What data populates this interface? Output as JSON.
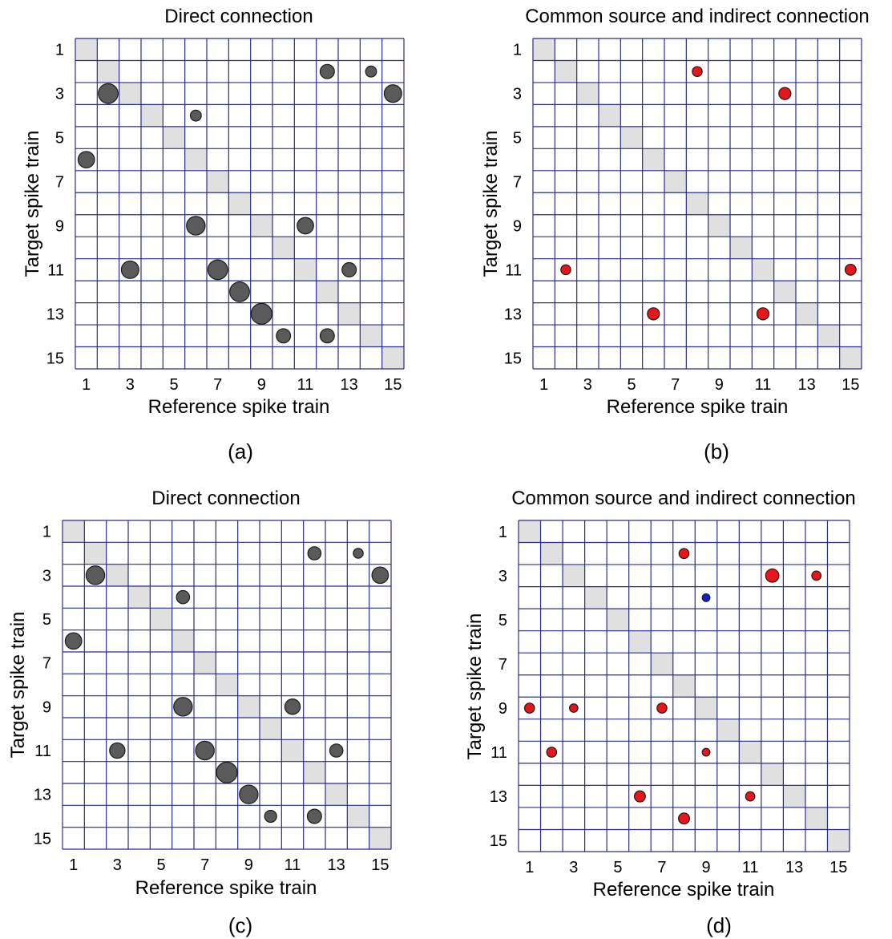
{
  "colors": {
    "grid": "#2b2b8f",
    "diagonal": "#e0e0e0",
    "dark_marker": "#5a5a5a",
    "red_marker": "#e8161a",
    "blue_marker": "#1020c8"
  },
  "chart_data": [
    {
      "id": "a",
      "type": "scatter",
      "subtype": "matrix-bubble",
      "title": "Direct connection",
      "xlabel": "Reference spike train",
      "ylabel": "Target spike train",
      "panel_label": "(a)",
      "xlim": [
        1,
        15
      ],
      "ylim": [
        1,
        15
      ],
      "x_ticks": [
        1,
        3,
        5,
        7,
        9,
        11,
        13,
        15
      ],
      "y_ticks": [
        1,
        3,
        5,
        7,
        9,
        11,
        13,
        15
      ],
      "y_inverted": true,
      "diagonal_shaded": true,
      "series": [
        {
          "color": "#5a5a5a",
          "points": [
            {
              "x": 12,
              "y": 2,
              "size": 0.65
            },
            {
              "x": 14,
              "y": 2,
              "size": 0.5
            },
            {
              "x": 2,
              "y": 3,
              "size": 0.9
            },
            {
              "x": 15,
              "y": 3,
              "size": 0.8
            },
            {
              "x": 6,
              "y": 4,
              "size": 0.5
            },
            {
              "x": 1,
              "y": 6,
              "size": 0.75
            },
            {
              "x": 6,
              "y": 9,
              "size": 0.85
            },
            {
              "x": 11,
              "y": 9,
              "size": 0.75
            },
            {
              "x": 3,
              "y": 11,
              "size": 0.8
            },
            {
              "x": 7,
              "y": 11,
              "size": 0.9
            },
            {
              "x": 13,
              "y": 11,
              "size": 0.65
            },
            {
              "x": 8,
              "y": 12,
              "size": 0.9
            },
            {
              "x": 9,
              "y": 13,
              "size": 0.95
            },
            {
              "x": 10,
              "y": 14,
              "size": 0.65
            },
            {
              "x": 12,
              "y": 14,
              "size": 0.65
            }
          ]
        }
      ]
    },
    {
      "id": "b",
      "type": "scatter",
      "subtype": "matrix-bubble",
      "title": "Common source and indirect connection",
      "xlabel": "Reference spike train",
      "ylabel": "Target spike train",
      "panel_label": "(b)",
      "xlim": [
        1,
        15
      ],
      "ylim": [
        1,
        15
      ],
      "x_ticks": [
        1,
        3,
        5,
        7,
        9,
        11,
        13,
        15
      ],
      "y_ticks": [
        1,
        3,
        5,
        7,
        9,
        11,
        13,
        15
      ],
      "y_inverted": true,
      "diagonal_shaded": true,
      "series": [
        {
          "color": "#e8161a",
          "points": [
            {
              "x": 8,
              "y": 2,
              "size": 0.45
            },
            {
              "x": 12,
              "y": 3,
              "size": 0.55
            },
            {
              "x": 2,
              "y": 11,
              "size": 0.45
            },
            {
              "x": 15,
              "y": 11,
              "size": 0.5
            },
            {
              "x": 6,
              "y": 13,
              "size": 0.55
            },
            {
              "x": 11,
              "y": 13,
              "size": 0.55
            }
          ]
        }
      ]
    },
    {
      "id": "c",
      "type": "scatter",
      "subtype": "matrix-bubble",
      "title": "Direct connection",
      "xlabel": "Reference spike train",
      "ylabel": "Target spike train",
      "panel_label": "(c)",
      "xlim": [
        1,
        15
      ],
      "ylim": [
        1,
        15
      ],
      "x_ticks": [
        1,
        3,
        5,
        7,
        9,
        11,
        13,
        15
      ],
      "y_ticks": [
        1,
        3,
        5,
        7,
        9,
        11,
        13,
        15
      ],
      "y_inverted": true,
      "diagonal_shaded": true,
      "series": [
        {
          "color": "#5a5a5a",
          "points": [
            {
              "x": 12,
              "y": 2,
              "size": 0.6
            },
            {
              "x": 14,
              "y": 2,
              "size": 0.45
            },
            {
              "x": 2,
              "y": 3,
              "size": 0.85
            },
            {
              "x": 15,
              "y": 3,
              "size": 0.75
            },
            {
              "x": 6,
              "y": 4,
              "size": 0.6
            },
            {
              "x": 1,
              "y": 6,
              "size": 0.75
            },
            {
              "x": 6,
              "y": 9,
              "size": 0.85
            },
            {
              "x": 11,
              "y": 9,
              "size": 0.7
            },
            {
              "x": 3,
              "y": 11,
              "size": 0.7
            },
            {
              "x": 7,
              "y": 11,
              "size": 0.85
            },
            {
              "x": 13,
              "y": 11,
              "size": 0.6
            },
            {
              "x": 8,
              "y": 12,
              "size": 0.95
            },
            {
              "x": 9,
              "y": 13,
              "size": 0.85
            },
            {
              "x": 10,
              "y": 14,
              "size": 0.55
            },
            {
              "x": 12,
              "y": 14,
              "size": 0.65
            }
          ]
        }
      ]
    },
    {
      "id": "d",
      "type": "scatter",
      "subtype": "matrix-bubble",
      "title": "Common source and indirect connection",
      "xlabel": "Reference spike train",
      "ylabel": "Target spike train",
      "panel_label": "(d)",
      "xlim": [
        1,
        15
      ],
      "ylim": [
        1,
        15
      ],
      "x_ticks": [
        1,
        3,
        5,
        7,
        9,
        11,
        13,
        15
      ],
      "y_ticks": [
        1,
        3,
        5,
        7,
        9,
        11,
        13,
        15
      ],
      "y_inverted": true,
      "diagonal_shaded": true,
      "series": [
        {
          "color": "#e8161a",
          "points": [
            {
              "x": 8,
              "y": 2,
              "size": 0.45
            },
            {
              "x": 12,
              "y": 3,
              "size": 0.6
            },
            {
              "x": 14,
              "y": 3,
              "size": 0.42
            },
            {
              "x": 1,
              "y": 9,
              "size": 0.45
            },
            {
              "x": 3,
              "y": 9,
              "size": 0.38
            },
            {
              "x": 7,
              "y": 9,
              "size": 0.45
            },
            {
              "x": 2,
              "y": 11,
              "size": 0.45
            },
            {
              "x": 9,
              "y": 11,
              "size": 0.35
            },
            {
              "x": 6,
              "y": 13,
              "size": 0.5
            },
            {
              "x": 11,
              "y": 13,
              "size": 0.42
            },
            {
              "x": 8,
              "y": 14,
              "size": 0.5
            }
          ]
        },
        {
          "color": "#1020c8",
          "points": [
            {
              "x": 9,
              "y": 4,
              "size": 0.35
            }
          ]
        }
      ]
    }
  ]
}
